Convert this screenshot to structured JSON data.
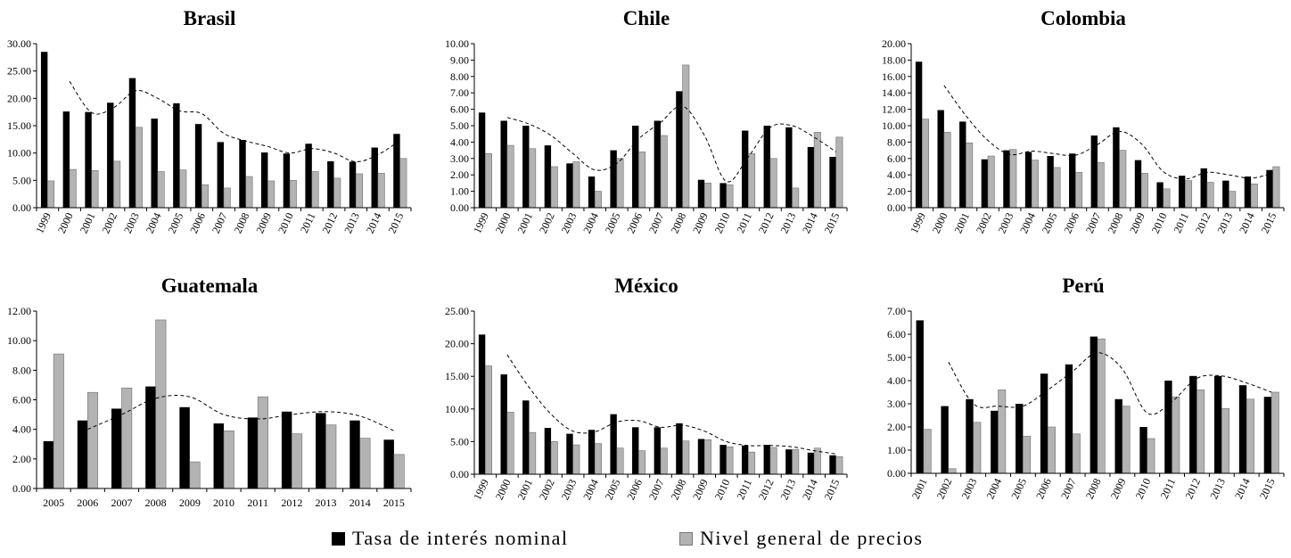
{
  "legend": {
    "rate_label": "Tasa de interés nominal",
    "price_label": "Nivel general de precios",
    "rate_color": "#000000",
    "price_color": "#b3b3b3"
  },
  "chart_data": [
    {
      "type": "bar",
      "title": "Brasil",
      "categories": [
        "1999",
        "2000",
        "2001",
        "2002",
        "2003",
        "2004",
        "2005",
        "2006",
        "2007",
        "2008",
        "2009",
        "2010",
        "2011",
        "2012",
        "2013",
        "2014",
        "2015"
      ],
      "ylim": [
        0,
        30
      ],
      "yticks": [
        "0.00",
        "5.00",
        "10.00",
        "15.00",
        "20.00",
        "25.00",
        "30.00"
      ],
      "series": [
        {
          "name": "Tasa de interés nominal",
          "values": [
            28.5,
            17.6,
            17.5,
            19.2,
            23.7,
            16.3,
            19.1,
            15.3,
            12.0,
            12.4,
            10.1,
            9.9,
            11.7,
            8.5,
            8.4,
            11.0,
            13.5
          ]
        },
        {
          "name": "Nivel general de precios",
          "values": [
            4.9,
            7.0,
            6.8,
            8.5,
            14.7,
            6.6,
            6.9,
            4.2,
            3.6,
            5.7,
            4.9,
            5.0,
            6.6,
            5.4,
            6.2,
            6.3,
            9.0
          ]
        }
      ],
      "trend": [
        null,
        23.1,
        17.4,
        18.3,
        21.4,
        20.0,
        17.7,
        17.2,
        13.6,
        12.2,
        11.2,
        10.0,
        10.8,
        10.0,
        8.4,
        9.7,
        12.3
      ]
    },
    {
      "type": "bar",
      "title": "Chile",
      "categories": [
        "1999",
        "2000",
        "2001",
        "2002",
        "2003",
        "2004",
        "2005",
        "2006",
        "2007",
        "2008",
        "2009",
        "2010",
        "2011",
        "2012",
        "2013",
        "2014",
        "2015"
      ],
      "ylim": [
        0,
        10
      ],
      "yticks": [
        "0.00",
        "1.00",
        "2.00",
        "3.00",
        "4.00",
        "5.00",
        "6.00",
        "7.00",
        "8.00",
        "9.00",
        "10.00"
      ],
      "series": [
        {
          "name": "Tasa de interés nominal",
          "values": [
            5.8,
            5.3,
            5.0,
            3.8,
            2.7,
            1.9,
            3.5,
            5.0,
            5.3,
            7.1,
            1.7,
            1.5,
            4.7,
            5.0,
            4.9,
            3.7,
            3.1
          ]
        },
        {
          "name": "Nivel general de precios",
          "values": [
            3.3,
            3.8,
            3.6,
            2.5,
            2.8,
            1.0,
            3.0,
            3.4,
            4.4,
            8.7,
            1.5,
            1.4,
            3.3,
            3.0,
            1.2,
            4.6,
            4.3
          ]
        }
      ],
      "trend": [
        null,
        5.5,
        5.1,
        4.4,
        3.3,
        2.3,
        2.7,
        4.2,
        5.2,
        6.2,
        4.4,
        1.6,
        3.1,
        4.9,
        5.0,
        4.3,
        3.4
      ]
    },
    {
      "type": "bar",
      "title": "Colombia",
      "categories": [
        "1999",
        "2000",
        "2001",
        "2002",
        "2003",
        "2004",
        "2005",
        "2006",
        "2007",
        "2008",
        "2009",
        "2010",
        "2011",
        "2012",
        "2013",
        "2014",
        "2015"
      ],
      "ylim": [
        0,
        20
      ],
      "yticks": [
        "0.00",
        "2.00",
        "4.00",
        "6.00",
        "8.00",
        "10.00",
        "12.00",
        "14.00",
        "16.00",
        "18.00",
        "20.00"
      ],
      "series": [
        {
          "name": "Tasa de interés nominal",
          "values": [
            17.8,
            11.9,
            10.5,
            5.9,
            7.0,
            6.8,
            6.3,
            6.6,
            8.8,
            9.8,
            5.8,
            3.1,
            3.9,
            4.8,
            3.3,
            3.8,
            4.6
          ]
        },
        {
          "name": "Nivel general de precios",
          "values": [
            10.8,
            9.2,
            7.9,
            6.3,
            7.1,
            5.8,
            4.9,
            4.3,
            5.5,
            7.0,
            4.2,
            2.3,
            3.3,
            3.1,
            2.0,
            2.9,
            5.0
          ]
        }
      ],
      "trend": [
        null,
        14.9,
        11.2,
        8.2,
        6.5,
        6.9,
        6.6,
        6.4,
        7.7,
        9.3,
        7.8,
        4.4,
        3.5,
        4.3,
        4.0,
        3.6,
        4.2
      ]
    },
    {
      "type": "bar",
      "title": "Guatemala",
      "categories": [
        "2005",
        "2006",
        "2007",
        "2008",
        "2009",
        "2010",
        "2011",
        "2012",
        "2013",
        "2014",
        "2015"
      ],
      "ylim": [
        0,
        12
      ],
      "yticks": [
        "0.00",
        "2.00",
        "4.00",
        "6.00",
        "8.00",
        "10.00",
        "12.00"
      ],
      "series": [
        {
          "name": "Tasa de interés nominal",
          "values": [
            3.2,
            4.6,
            5.4,
            6.9,
            5.5,
            4.4,
            4.8,
            5.2,
            5.1,
            4.6,
            3.3
          ]
        },
        {
          "name": "Nivel general de precios",
          "values": [
            9.1,
            6.5,
            6.8,
            11.4,
            1.8,
            3.9,
            6.2,
            3.7,
            4.3,
            3.4,
            2.3
          ]
        }
      ],
      "trend": [
        null,
        4.0,
        5.0,
        6.1,
        6.2,
        5.0,
        4.7,
        5.0,
        5.2,
        4.9,
        3.9
      ]
    },
    {
      "type": "bar",
      "title": "México",
      "categories": [
        "1999",
        "2000",
        "2001",
        "2002",
        "2003",
        "2004",
        "2005",
        "2006",
        "2007",
        "2008",
        "2009",
        "2010",
        "2011",
        "2012",
        "2013",
        "2014",
        "2015"
      ],
      "ylim": [
        0,
        25
      ],
      "yticks": [
        "0.00",
        "5.00",
        "10.00",
        "15.00",
        "20.00",
        "25.00"
      ],
      "series": [
        {
          "name": "Tasa de interés nominal",
          "values": [
            21.4,
            15.3,
            11.3,
            7.1,
            6.2,
            6.8,
            9.2,
            7.2,
            7.2,
            7.8,
            5.4,
            4.5,
            4.4,
            4.5,
            3.8,
            3.3,
            2.9
          ]
        },
        {
          "name": "Nivel general de precios",
          "values": [
            16.6,
            9.5,
            6.4,
            5.0,
            4.5,
            4.7,
            4.0,
            3.6,
            4.0,
            5.1,
            5.3,
            4.2,
            3.4,
            4.1,
            3.8,
            4.0,
            2.7
          ]
        }
      ],
      "trend": [
        null,
        18.3,
        13.3,
        9.2,
        6.6,
        6.5,
        8.0,
        8.2,
        7.2,
        7.5,
        6.6,
        5.0,
        4.4,
        4.4,
        4.2,
        3.6,
        3.1
      ]
    },
    {
      "type": "bar",
      "title": "Perú",
      "categories": [
        "2001",
        "2002",
        "2003",
        "2004",
        "2005",
        "2006",
        "2007",
        "2008",
        "2009",
        "2010",
        "2011",
        "2012",
        "2013",
        "2014",
        "2015"
      ],
      "ylim": [
        0,
        7
      ],
      "yticks": [
        "0.00",
        "1.00",
        "2.00",
        "3.00",
        "4.00",
        "5.00",
        "6.00",
        "7.00"
      ],
      "series": [
        {
          "name": "Tasa de interés nominal",
          "values": [
            6.6,
            2.9,
            3.2,
            2.7,
            3.0,
            4.3,
            4.7,
            5.9,
            3.2,
            2.0,
            4.0,
            4.2,
            4.2,
            3.8,
            3.3
          ]
        },
        {
          "name": "Nivel general de precios",
          "values": [
            1.9,
            0.2,
            2.2,
            3.6,
            1.6,
            2.0,
            1.7,
            5.8,
            2.9,
            1.5,
            3.3,
            3.6,
            2.8,
            3.2,
            3.5
          ]
        }
      ],
      "trend": [
        null,
        4.8,
        3.0,
        2.9,
        2.9,
        3.6,
        4.4,
        5.2,
        4.5,
        2.6,
        3.1,
        4.1,
        4.2,
        3.9,
        3.5
      ]
    }
  ]
}
